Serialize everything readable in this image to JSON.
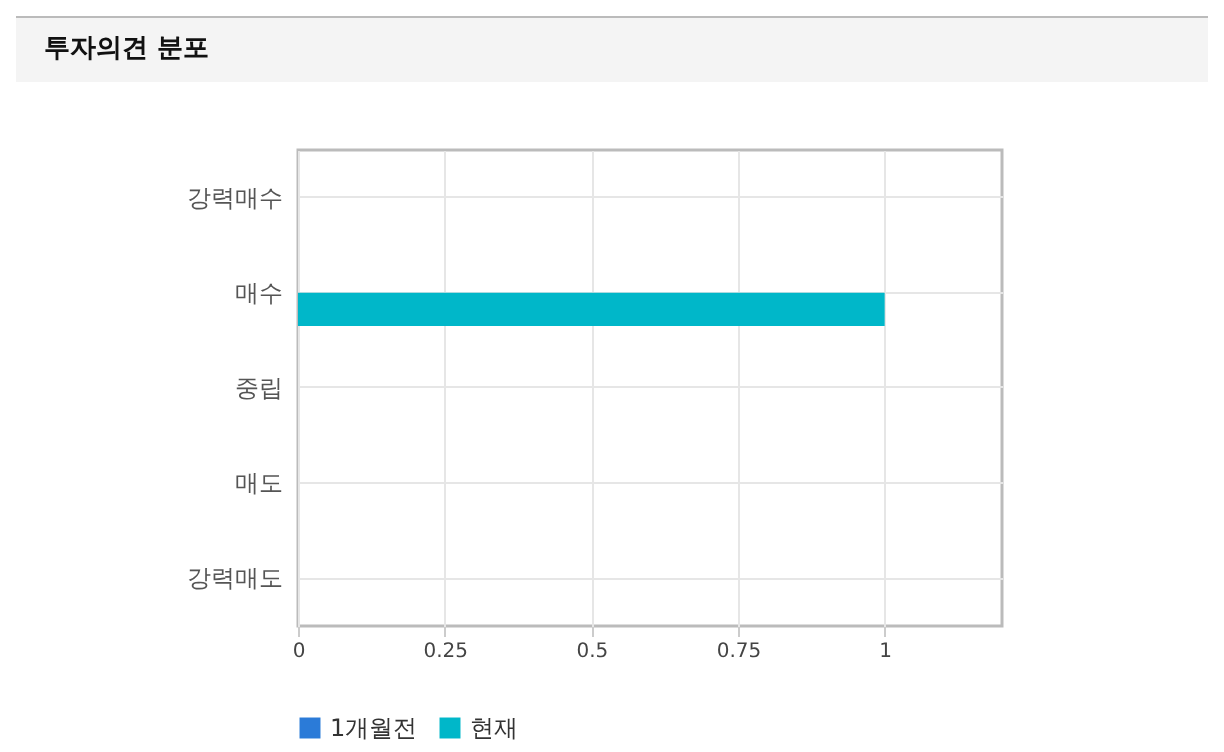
{
  "chart_data": {
    "type": "bar",
    "title": "투자의견 분포",
    "orientation": "horizontal",
    "categories": [
      "강력매수",
      "매수",
      "중립",
      "매도",
      "강력매도"
    ],
    "series": [
      {
        "name": "1개월전",
        "color": "#2b7bd8",
        "values": [
          0,
          0,
          0,
          0,
          0
        ]
      },
      {
        "name": "현재",
        "color": "#00b7c9",
        "values": [
          0,
          1,
          0,
          0,
          0
        ]
      }
    ],
    "xlim": [
      0,
      1.2
    ],
    "xticks": [
      0,
      0.25,
      0.5,
      0.75,
      1
    ],
    "grid": true,
    "legend": "bottom"
  }
}
